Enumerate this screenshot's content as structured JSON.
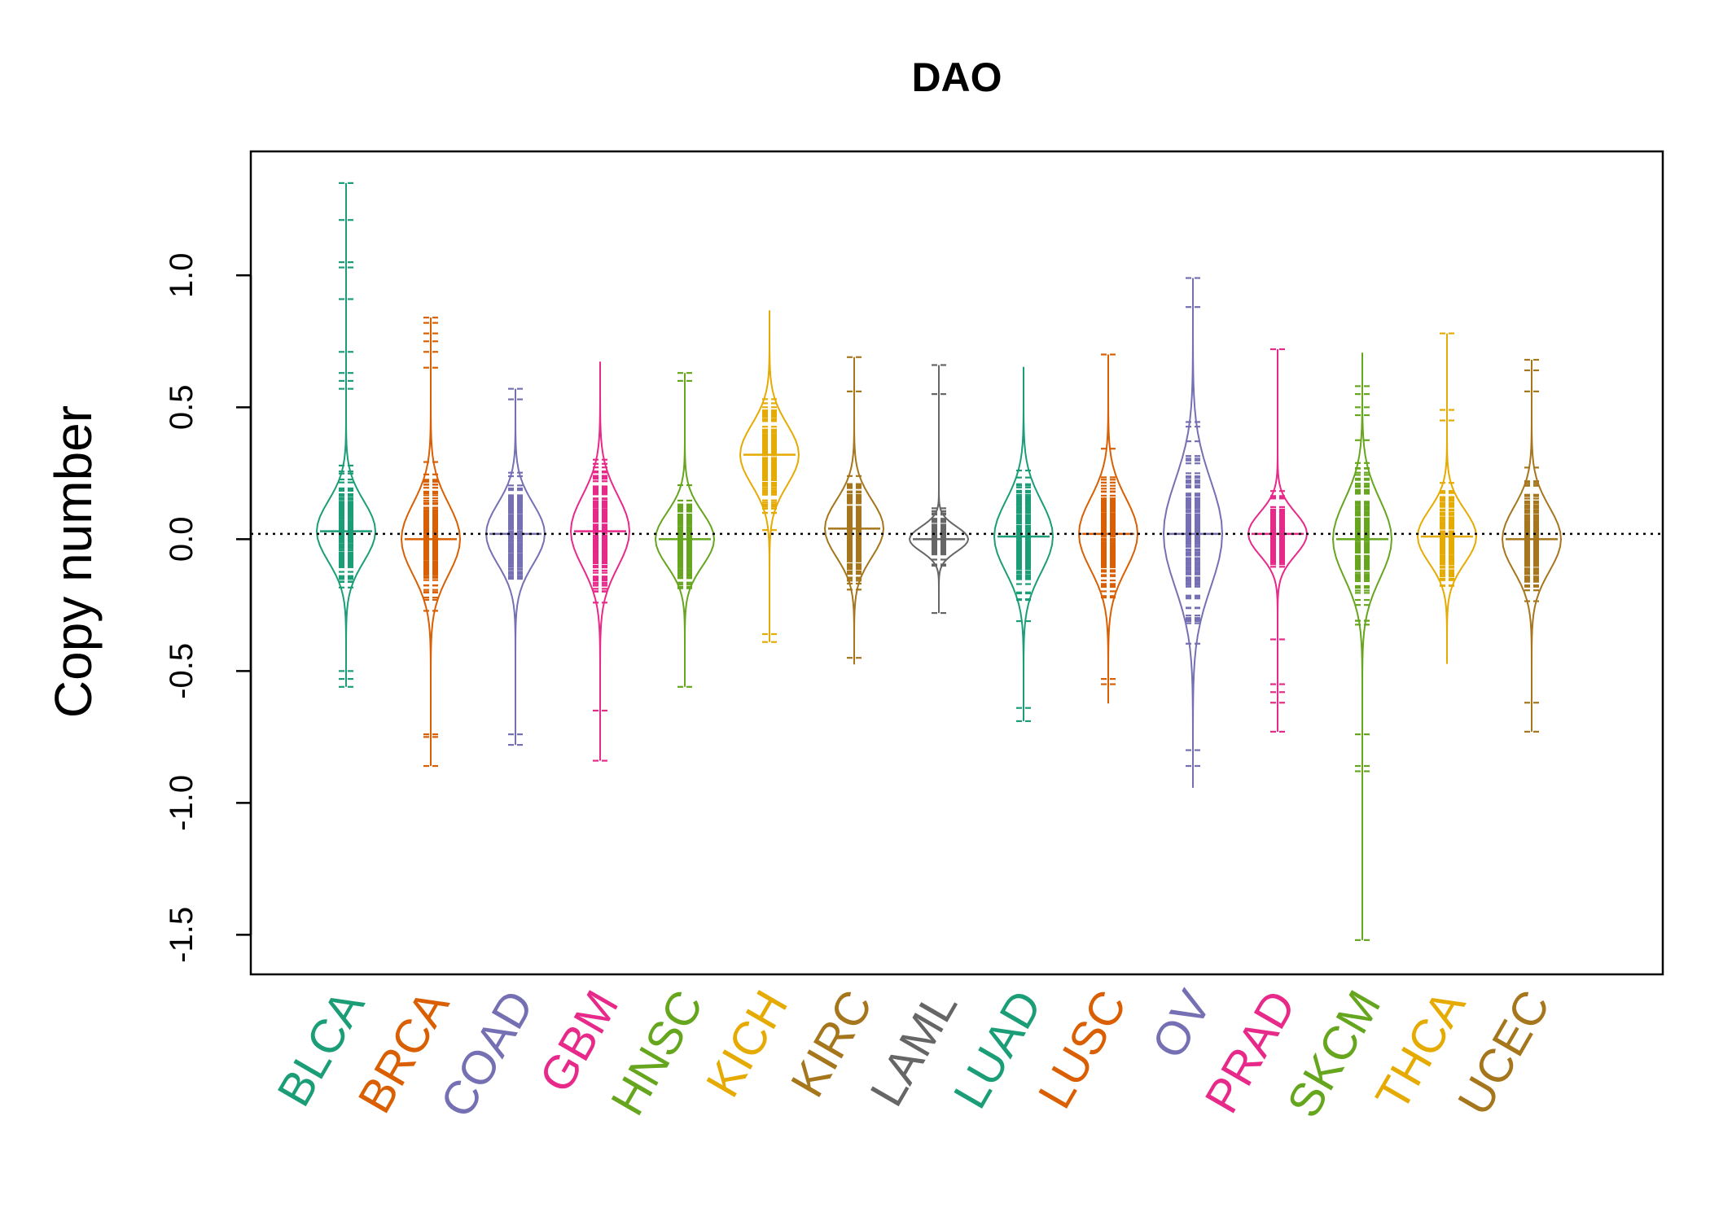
{
  "chart_data": {
    "type": "beanplot",
    "title": "DAO",
    "ylabel": "Copy number",
    "ylim": [
      -1.65,
      1.47
    ],
    "yticks": [
      -1.5,
      -1.0,
      -0.5,
      0.0,
      0.5,
      1.0
    ],
    "ytick_labels": [
      "-1.5",
      "-1.0",
      "-0.5",
      "0.0",
      "0.5",
      "1.0"
    ],
    "reference_line": 0.02,
    "categories": [
      {
        "name": "BLCA",
        "color": "#1b9e77",
        "center": 0.03,
        "sd": 0.17,
        "outliers": [
          1.35,
          1.21,
          1.05,
          1.03,
          0.91,
          0.71,
          0.63,
          0.6,
          0.57,
          -0.5,
          -0.53,
          -0.56
        ]
      },
      {
        "name": "BRCA",
        "color": "#d95f02",
        "center": 0.0,
        "sd": 0.2,
        "outliers": [
          0.84,
          0.82,
          0.78,
          0.75,
          0.71,
          0.65,
          -0.74,
          -0.75,
          -0.86
        ]
      },
      {
        "name": "COAD",
        "color": "#7570b3",
        "center": 0.02,
        "sd": 0.17,
        "outliers": [
          0.57,
          0.53,
          -0.74,
          -0.78
        ]
      },
      {
        "name": "GBM",
        "color": "#e7298a",
        "center": 0.03,
        "sd": 0.2,
        "outliers": [
          -0.65,
          -0.84
        ]
      },
      {
        "name": "HNSC",
        "color": "#66a61e",
        "center": 0.0,
        "sd": 0.15,
        "outliers": [
          0.63,
          0.6,
          -0.56
        ]
      },
      {
        "name": "KICH",
        "color": "#e6ab02",
        "center": 0.32,
        "sd": 0.17,
        "outliers": [
          0.5,
          -0.36,
          -0.39
        ]
      },
      {
        "name": "KIRC",
        "color": "#a6761d",
        "center": 0.04,
        "sd": 0.16,
        "outliers": [
          0.69,
          0.56,
          -0.45
        ]
      },
      {
        "name": "LAML",
        "color": "#666666",
        "center": 0.0,
        "sd": 0.07,
        "outliers": [
          0.66,
          0.55,
          -0.28
        ]
      },
      {
        "name": "LUAD",
        "color": "#1b9e77",
        "center": 0.01,
        "sd": 0.2,
        "outliers": [
          -0.64,
          -0.69
        ]
      },
      {
        "name": "LUSC",
        "color": "#d95f02",
        "center": 0.02,
        "sd": 0.2,
        "outliers": [
          0.7,
          -0.53,
          -0.55
        ]
      },
      {
        "name": "OV",
        "color": "#7570b3",
        "center": 0.02,
        "sd": 0.3,
        "outliers": [
          0.99,
          0.88,
          -0.8,
          -0.86
        ]
      },
      {
        "name": "PRAD",
        "color": "#e7298a",
        "center": 0.02,
        "sd": 0.12,
        "outliers": [
          0.72,
          -0.38,
          -0.55,
          -0.58,
          -0.62,
          -0.73
        ]
      },
      {
        "name": "SKCM",
        "color": "#66a61e",
        "center": 0.0,
        "sd": 0.22,
        "outliers": [
          0.58,
          0.55,
          0.5,
          0.47,
          -0.74,
          -0.86,
          -0.88,
          -1.52
        ]
      },
      {
        "name": "THCA",
        "color": "#e6ab02",
        "center": 0.01,
        "sd": 0.15,
        "outliers": [
          0.78,
          0.49,
          0.45
        ]
      },
      {
        "name": "UCEC",
        "color": "#a6761d",
        "center": 0.0,
        "sd": 0.18,
        "outliers": [
          0.68,
          0.64,
          0.56,
          -0.62,
          -0.73
        ]
      }
    ]
  }
}
